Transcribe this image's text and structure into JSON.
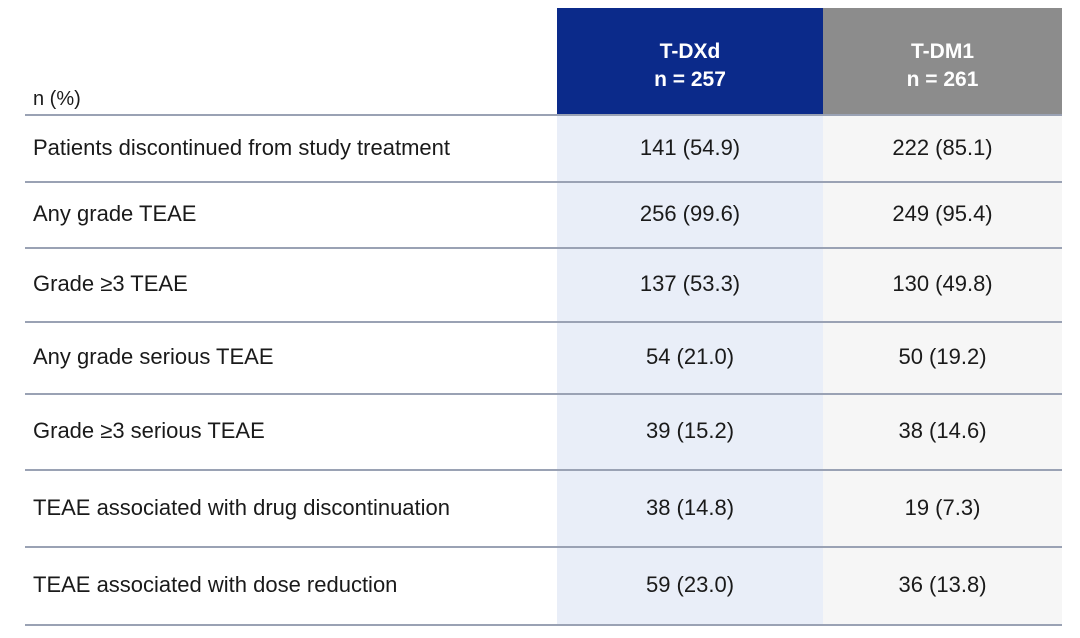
{
  "table": {
    "row_header": "n (%)",
    "columns": [
      {
        "name": "T-DXd",
        "n": "n = 257"
      },
      {
        "name": "T-DM1",
        "n": "n = 261"
      }
    ],
    "rows": [
      [
        "Patients discontinued from study treatment",
        "141 (54.9)",
        "222 (85.1)"
      ],
      [
        "Any grade TEAE",
        "256 (99.6)",
        "249 (95.4)"
      ],
      [
        "Grade ≥3 TEAE",
        "137 (53.3)",
        "130 (49.8)"
      ],
      [
        "Any grade serious TEAE",
        "54 (21.0)",
        "50 (19.2)"
      ],
      [
        "Grade ≥3 serious TEAE",
        "39 (15.2)",
        "38 (14.6)"
      ],
      [
        "TEAE associated with drug discontinuation",
        "38 (14.8)",
        "19 (7.3)"
      ],
      [
        "TEAE associated with dose reduction",
        "59 (23.0)",
        "36 (13.8)"
      ]
    ]
  }
}
